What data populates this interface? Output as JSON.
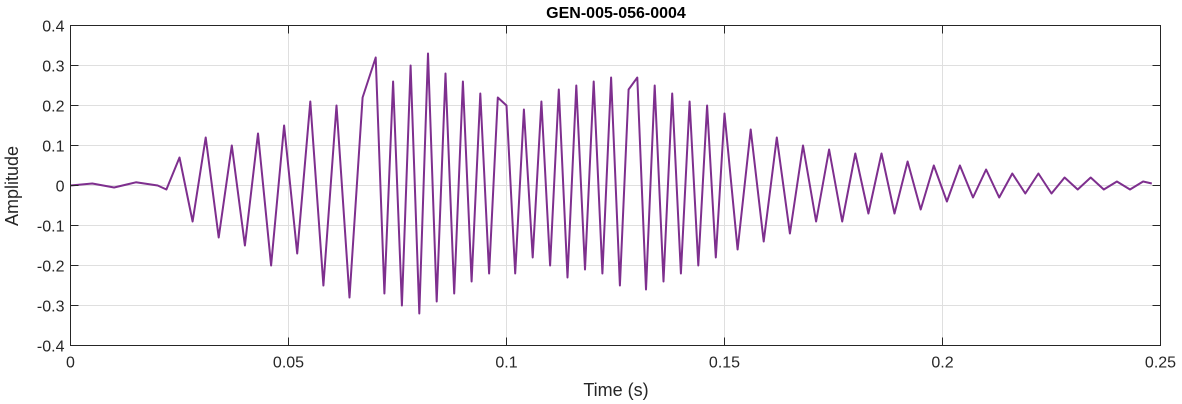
{
  "chart_data": {
    "type": "line",
    "title": "GEN-005-056-0004",
    "xlabel": "Time (s)",
    "ylabel": "Amplitude",
    "xlim": [
      0,
      0.25
    ],
    "ylim": [
      -0.4,
      0.4
    ],
    "grid": true,
    "xticks": [
      0,
      0.05,
      0.1,
      0.15,
      0.2,
      0.25
    ],
    "xtick_labels": [
      "0",
      "0.05",
      "0.1",
      "0.15",
      "0.2",
      "0.25"
    ],
    "yticks": [
      0.4,
      0.3,
      0.2,
      0.1,
      0,
      -0.1,
      -0.2,
      -0.3,
      -0.4
    ],
    "ytick_labels": [
      "0.4",
      "0.3",
      "0.2",
      "0.1",
      "0",
      "-0.1",
      "-0.2",
      "-0.3",
      "-0.4"
    ],
    "series": [
      {
        "color": "#7e2f8e",
        "x": [
          0,
          0.005,
          0.01,
          0.015,
          0.02,
          0.022,
          0.025,
          0.028,
          0.031,
          0.034,
          0.037,
          0.04,
          0.043,
          0.046,
          0.049,
          0.052,
          0.055,
          0.058,
          0.061,
          0.064,
          0.067,
          0.07,
          0.072,
          0.074,
          0.076,
          0.078,
          0.08,
          0.082,
          0.084,
          0.086,
          0.088,
          0.09,
          0.092,
          0.094,
          0.096,
          0.098,
          0.1,
          0.102,
          0.104,
          0.106,
          0.108,
          0.11,
          0.112,
          0.114,
          0.116,
          0.118,
          0.12,
          0.122,
          0.124,
          0.126,
          0.128,
          0.13,
          0.132,
          0.134,
          0.136,
          0.138,
          0.14,
          0.142,
          0.144,
          0.146,
          0.148,
          0.15,
          0.153,
          0.156,
          0.159,
          0.162,
          0.165,
          0.168,
          0.171,
          0.174,
          0.177,
          0.18,
          0.183,
          0.186,
          0.189,
          0.192,
          0.195,
          0.198,
          0.201,
          0.204,
          0.207,
          0.21,
          0.213,
          0.216,
          0.219,
          0.222,
          0.225,
          0.228,
          0.231,
          0.234,
          0.237,
          0.24,
          0.243,
          0.246,
          0.248
        ],
        "y": [
          0,
          0.005,
          -0.005,
          0.008,
          0,
          -0.01,
          0.07,
          -0.09,
          0.12,
          -0.13,
          0.1,
          -0.15,
          0.13,
          -0.2,
          0.15,
          -0.17,
          0.21,
          -0.25,
          0.2,
          -0.28,
          0.22,
          0.32,
          -0.27,
          0.26,
          -0.3,
          0.3,
          -0.32,
          0.33,
          -0.29,
          0.28,
          -0.27,
          0.26,
          -0.24,
          0.23,
          -0.22,
          0.22,
          0.2,
          -0.22,
          0.19,
          -0.18,
          0.21,
          -0.2,
          0.24,
          -0.23,
          0.25,
          -0.21,
          0.26,
          -0.22,
          0.27,
          -0.25,
          0.24,
          0.27,
          -0.26,
          0.25,
          -0.24,
          0.23,
          -0.22,
          0.21,
          -0.2,
          0.2,
          -0.18,
          0.18,
          -0.16,
          0.14,
          -0.14,
          0.12,
          -0.12,
          0.1,
          -0.09,
          0.09,
          -0.09,
          0.08,
          -0.07,
          0.08,
          -0.07,
          0.06,
          -0.06,
          0.05,
          -0.04,
          0.05,
          -0.03,
          0.04,
          -0.03,
          0.03,
          -0.02,
          0.03,
          -0.02,
          0.02,
          -0.01,
          0.02,
          -0.01,
          0.01,
          -0.01,
          0.01,
          0.005
        ]
      }
    ]
  }
}
